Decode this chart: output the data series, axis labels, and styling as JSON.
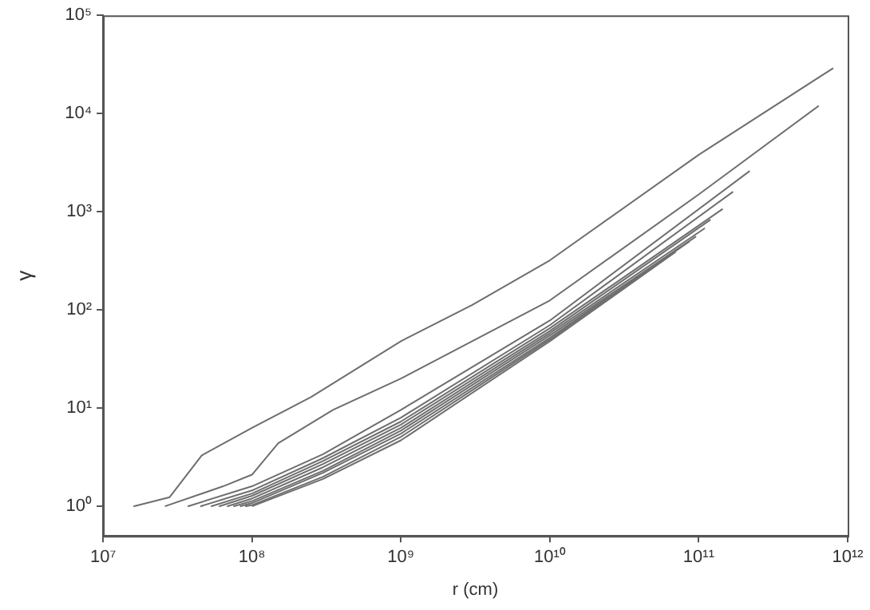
{
  "chart_data": {
    "type": "line",
    "xlabel": "r (cm)",
    "ylabel": "γ",
    "log": "xy",
    "grid": false,
    "legend": false,
    "marker": "none",
    "line_style": "solid",
    "xlim": [
      10000000.0,
      1000000000000.0
    ],
    "xticks": [
      {
        "value": 10000000.0,
        "label": "10⁷"
      },
      {
        "value": 100000000.0,
        "label": "10⁸"
      },
      {
        "value": 1000000000.0,
        "label": "10⁹"
      },
      {
        "value": 10000000000.0,
        "label": "10¹⁰"
      },
      {
        "value": 100000000000.0,
        "label": "10¹¹"
      },
      {
        "value": 1000000000000.0,
        "label": "10¹²"
      }
    ],
    "ylim": [
      0.5,
      100000.0
    ],
    "yticks": [
      {
        "value": 1,
        "label": "10⁰"
      },
      {
        "value": 10,
        "label": "10¹"
      },
      {
        "value": 100,
        "label": "10²"
      },
      {
        "value": 1000,
        "label": "10³"
      },
      {
        "value": 10000,
        "label": "10⁴"
      },
      {
        "value": 100000,
        "label": "10⁵"
      }
    ],
    "series": [
      {
        "color": "#6e6e6e",
        "x": [
          16000000.0,
          28000000.0,
          46000000.0,
          100000000.0,
          250000000.0,
          1000000000.0,
          3000000000.0,
          10000000000.0,
          100000000000.0,
          800000000000.0
        ],
        "values": [
          1,
          1.24,
          3.3,
          6.3,
          13,
          48,
          112,
          320,
          3800,
          29000
        ]
      },
      {
        "color": "#6e6e6e",
        "x": [
          26000000.0,
          64000000.0,
          100000000.0,
          150000000.0,
          350000000.0,
          1000000000.0,
          10000000000.0,
          100000000000.0,
          640000000000.0
        ],
        "values": [
          1,
          1.6,
          2.1,
          4.4,
          9.6,
          20,
          125,
          1500,
          12000
        ]
      },
      {
        "color": "#6e6e6e",
        "x": [
          37000000.0,
          100000000.0,
          300000000.0,
          1000000000.0,
          10000000000.0,
          220000000000.0
        ],
        "values": [
          1,
          1.6,
          3.4,
          9.6,
          78,
          2600
        ]
      },
      {
        "color": "#6e6e6e",
        "x": [
          45000000.0,
          100000000.0,
          300000000.0,
          1000000000.0,
          10000000000.0,
          170000000000.0
        ],
        "values": [
          1,
          1.45,
          3.1,
          8,
          70,
          1600
        ]
      },
      {
        "color": "#6e6e6e",
        "x": [
          53000000.0,
          100000000.0,
          300000000.0,
          1000000000.0,
          10000000000.0,
          145000000000.0
        ],
        "values": [
          1,
          1.35,
          2.9,
          7.3,
          65,
          1070
        ]
      },
      {
        "color": "#6e6e6e",
        "x": [
          60000000.0,
          100000000.0,
          300000000.0,
          1000000000.0,
          10000000000.0,
          120000000000.0
        ],
        "values": [
          1,
          1.28,
          2.7,
          6.8,
          61,
          830
        ]
      },
      {
        "color": "#6e6e6e",
        "x": [
          68000000.0,
          100000000.0,
          300000000.0,
          1000000000.0,
          10000000000.0,
          110000000000.0
        ],
        "values": [
          1,
          1.2,
          2.5,
          6.3,
          58,
          680
        ]
      },
      {
        "color": "#6e6e6e",
        "x": [
          75000000.0,
          100000000.0,
          300000000.0,
          1000000000.0,
          10000000000.0,
          96000000000.0
        ],
        "values": [
          1,
          1.13,
          2.3,
          5.9,
          55,
          560
        ]
      },
      {
        "color": "#6e6e6e",
        "x": [
          83000000.0,
          100000000.0,
          300000000.0,
          1000000000.0,
          10000000000.0,
          87000000000.0
        ],
        "values": [
          1,
          1.08,
          2.2,
          5.5,
          52,
          500
        ]
      },
      {
        "color": "#6e6e6e",
        "x": [
          90000000.0,
          100000000.0,
          300000000.0,
          1000000000.0,
          10000000000.0,
          76000000000.0
        ],
        "values": [
          1,
          1.03,
          2,
          5.1,
          50,
          440
        ]
      },
      {
        "color": "#6e6e6e",
        "x": [
          100000000.0,
          300000000.0,
          1000000000.0,
          10000000000.0,
          70000000000.0
        ],
        "values": [
          1,
          1.9,
          4.7,
          48,
          390
        ]
      }
    ]
  }
}
